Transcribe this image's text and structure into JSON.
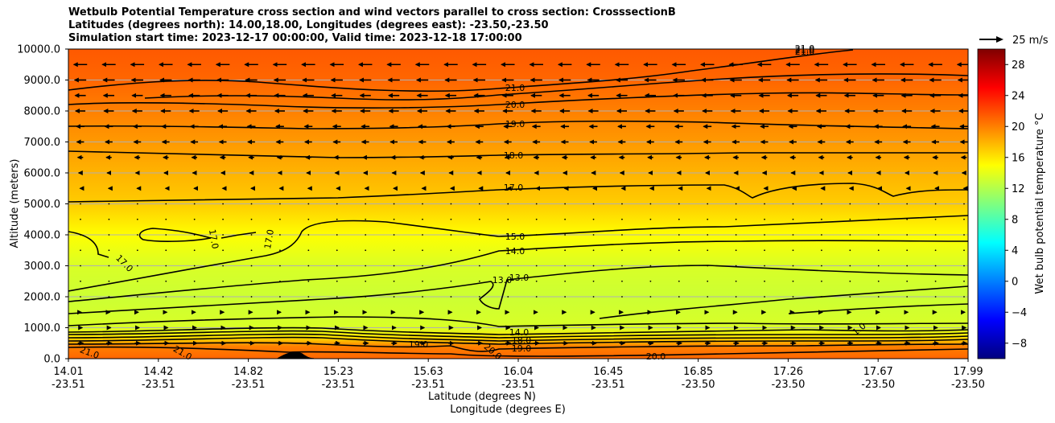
{
  "chart_data": {
    "type": "contour",
    "title_lines": [
      "Wetbulb Potential Temperature cross section and wind vectors parallel to cross section: CrosssectionB",
      "Latitudes (degrees north): 14.00,18.00, Longitudes (degrees east): -23.50,-23.50",
      "Simulation start time: 2023-12-17 00:00:00, Valid time: 2023-12-18 17:00:00"
    ],
    "ylabel": "Altitude (meters)",
    "xlabel_lat": "Latitude (degrees N)",
    "xlabel_lon": "Longitude (degrees E)",
    "ylim": [
      0,
      10000
    ],
    "y_ticks": [
      "0.0",
      "1000.0",
      "2000.0",
      "3000.0",
      "4000.0",
      "5000.0",
      "6000.0",
      "7000.0",
      "8000.0",
      "9000.0",
      "10000.0"
    ],
    "x_ticks": [
      {
        "lat": "14.01",
        "lon": "-23.51"
      },
      {
        "lat": "14.42",
        "lon": "-23.51"
      },
      {
        "lat": "14.82",
        "lon": "-23.51"
      },
      {
        "lat": "15.23",
        "lon": "-23.51"
      },
      {
        "lat": "15.63",
        "lon": "-23.51"
      },
      {
        "lat": "16.04",
        "lon": "-23.51"
      },
      {
        "lat": "16.45",
        "lon": "-23.51"
      },
      {
        "lat": "16.85",
        "lon": "-23.50"
      },
      {
        "lat": "17.26",
        "lon": "-23.50"
      },
      {
        "lat": "17.67",
        "lon": "-23.50"
      },
      {
        "lat": "17.99",
        "lon": "-23.50"
      }
    ],
    "colorbar": {
      "label": "Wet bulb potential temperature °C",
      "range": [
        -10,
        30
      ],
      "ticks": [
        "−8",
        "−4",
        "0",
        "4",
        "8",
        "12",
        "16",
        "20",
        "24",
        "28"
      ],
      "tick_values": [
        -8,
        -4,
        0,
        4,
        8,
        12,
        16,
        20,
        24,
        28
      ]
    },
    "wind_reference": "25 m/s",
    "contour_labels": [
      "21.0",
      "20.0",
      "19.0",
      "18.0",
      "17.0",
      "17.0",
      "17.0",
      "17.0",
      "15.0",
      "14.0",
      "13.0",
      "13.0",
      "21.0",
      "21.0",
      "19.0",
      "20.0",
      "19.0",
      "14.0",
      "18.0",
      "20.0",
      "21.0",
      "21.0",
      "21.0",
      "1.0"
    ],
    "field_profile": {
      "heights_m": [
        0,
        400,
        700,
        1000,
        2000,
        3000,
        4000,
        5000,
        6000,
        7000,
        8000,
        9000,
        10000
      ],
      "theta_w_C": [
        21,
        20,
        16,
        13.5,
        13,
        13.5,
        15,
        17,
        18,
        19,
        20,
        21,
        21.5
      ]
    },
    "wind_rows": [
      {
        "alt": 9500,
        "u": -15
      },
      {
        "alt": 9000,
        "u": -13
      },
      {
        "alt": 8500,
        "u": -12
      },
      {
        "alt": 8000,
        "u": -11
      },
      {
        "alt": 7500,
        "u": -9
      },
      {
        "alt": 7000,
        "u": -8
      },
      {
        "alt": 6500,
        "u": -6
      },
      {
        "alt": 6000,
        "u": -4
      },
      {
        "alt": 5500,
        "u": -1
      },
      {
        "alt": 5000,
        "u": 0
      },
      {
        "alt": 4500,
        "u": 0
      },
      {
        "alt": 4000,
        "u": 0
      },
      {
        "alt": 3500,
        "u": 0
      },
      {
        "alt": 3000,
        "u": 0
      },
      {
        "alt": 2500,
        "u": 0
      },
      {
        "alt": 2000,
        "u": 0
      },
      {
        "alt": 1500,
        "u": 2
      },
      {
        "alt": 1000,
        "u": 4
      },
      {
        "alt": 500,
        "u": 6
      }
    ]
  }
}
